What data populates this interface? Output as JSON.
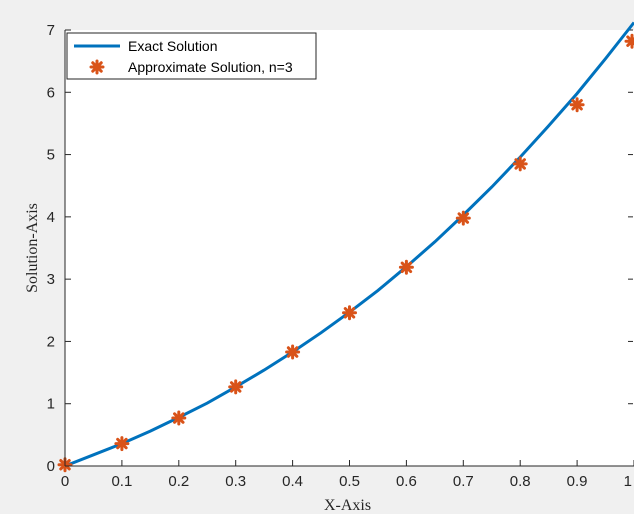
{
  "chart_data": {
    "type": "line",
    "title": "",
    "xlabel": "X-Axis",
    "ylabel": "Solution-Axis",
    "xlim": [
      0,
      1
    ],
    "ylim": [
      0,
      7
    ],
    "xticks": [
      0,
      0.1,
      0.2,
      0.3,
      0.4,
      0.5,
      0.6,
      0.7,
      0.8,
      0.9,
      1
    ],
    "xtick_labels": [
      "0",
      "0.1",
      "0.2",
      "0.3",
      "0.4",
      "0.5",
      "0.6",
      "0.7",
      "0.8",
      "0.9",
      "1"
    ],
    "yticks": [
      0,
      1,
      2,
      3,
      4,
      5,
      6,
      7
    ],
    "ytick_labels": [
      "0",
      "1",
      "2",
      "3",
      "4",
      "5",
      "6",
      "7"
    ],
    "grid": false,
    "legend_position": "top-left",
    "series": [
      {
        "name": "Exact Solution",
        "kind": "line",
        "color": "#0072bd",
        "x": [
          0,
          0.05,
          0.1,
          0.15,
          0.2,
          0.25,
          0.3,
          0.35,
          0.4,
          0.45,
          0.5,
          0.55,
          0.6,
          0.65,
          0.7,
          0.75,
          0.8,
          0.85,
          0.9,
          0.95,
          1.0
        ],
        "y": [
          0,
          0.18,
          0.36,
          0.56,
          0.78,
          1.01,
          1.27,
          1.54,
          1.83,
          2.14,
          2.47,
          2.82,
          3.2,
          3.6,
          4.03,
          4.48,
          4.96,
          5.46,
          5.98,
          6.54,
          7.12
        ]
      },
      {
        "name": "Approximate Solution, n=3",
        "kind": "scatter",
        "marker": "asterisk",
        "color": "#d95319",
        "x": [
          0,
          0.1,
          0.2,
          0.3,
          0.4,
          0.5,
          0.6,
          0.7,
          0.8,
          0.9,
          1.0
        ],
        "y": [
          0.02,
          0.36,
          0.77,
          1.27,
          1.83,
          2.46,
          3.19,
          3.98,
          4.85,
          5.8,
          6.82
        ]
      }
    ]
  }
}
